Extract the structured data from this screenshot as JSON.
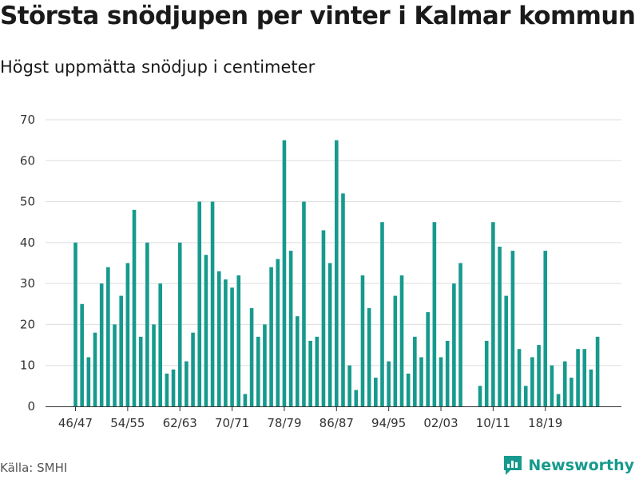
{
  "colors": {
    "bar": "#169a8d",
    "grid": "#dddddd",
    "axis": "#333333",
    "brand": "#169a8d"
  },
  "footer": {
    "source": "Källa: SMHI",
    "brand": "Newsworthy",
    "brand_icon": "newsworthy-logo-icon"
  },
  "chart_data": {
    "type": "bar",
    "title": "Största snödjupen per vinter i Kalmar kommun",
    "subtitle": "Högst uppmätta snödjup i centimeter",
    "xlabel": "",
    "ylabel": "",
    "ylim": [
      0,
      70
    ],
    "yticks": [
      0,
      10,
      20,
      30,
      40,
      50,
      60,
      70
    ],
    "grid": true,
    "xtick_labels": [
      "46/47",
      "54/55",
      "62/63",
      "70/71",
      "78/79",
      "86/87",
      "94/95",
      "02/03",
      "10/11",
      "18/19"
    ],
    "categories": [
      "46/47",
      "47/48",
      "48/49",
      "49/50",
      "50/51",
      "51/52",
      "52/53",
      "53/54",
      "54/55",
      "55/56",
      "56/57",
      "57/58",
      "58/59",
      "59/60",
      "60/61",
      "61/62",
      "62/63",
      "63/64",
      "64/65",
      "65/66",
      "66/67",
      "67/68",
      "68/69",
      "69/70",
      "70/71",
      "71/72",
      "72/73",
      "73/74",
      "74/75",
      "75/76",
      "76/77",
      "77/78",
      "78/79",
      "79/80",
      "80/81",
      "81/82",
      "82/83",
      "83/84",
      "84/85",
      "85/86",
      "86/87",
      "87/88",
      "88/89",
      "89/90",
      "90/91",
      "91/92",
      "92/93",
      "93/94",
      "94/95",
      "95/96",
      "96/97",
      "97/98",
      "98/99",
      "99/00",
      "00/01",
      "01/02",
      "02/03",
      "03/04",
      "04/05",
      "05/06",
      "06/07",
      "07/08",
      "08/09",
      "09/10",
      "10/11",
      "11/12",
      "12/13",
      "13/14",
      "14/15",
      "15/16",
      "16/17",
      "17/18",
      "18/19",
      "19/20",
      "20/21",
      "21/22",
      "22/23",
      "23/24",
      "24/25",
      "25/26",
      "26/27"
    ],
    "values": [
      40,
      25,
      12,
      18,
      30,
      34,
      20,
      27,
      35,
      48,
      17,
      40,
      20,
      30,
      8,
      9,
      40,
      11,
      18,
      50,
      37,
      50,
      33,
      31,
      29,
      32,
      3,
      24,
      17,
      20,
      34,
      36,
      65,
      38,
      22,
      50,
      16,
      17,
      43,
      35,
      65,
      52,
      10,
      4,
      32,
      24,
      7,
      45,
      11,
      27,
      32,
      8,
      17,
      12,
      23,
      45,
      12,
      16,
      30,
      35,
      0,
      0,
      5,
      16,
      45,
      39,
      27,
      38,
      14,
      5,
      12,
      15,
      38,
      10,
      3,
      11,
      7,
      14,
      14,
      9,
      17
    ]
  }
}
